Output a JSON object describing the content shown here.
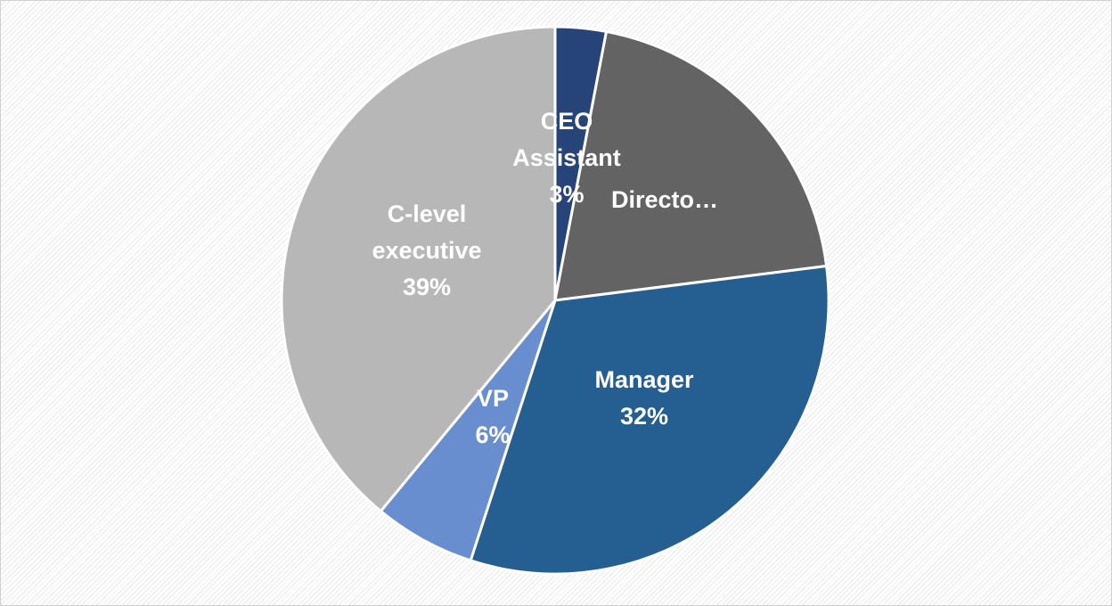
{
  "chart_data": {
    "type": "pie",
    "start_angle_deg": 0,
    "direction": "clockwise",
    "slices": [
      {
        "category": "CEO Assistant",
        "value": 3,
        "value_label": "3%",
        "label_lines": [
          "CEO",
          "Assistant",
          "3%"
        ],
        "color": "#264478"
      },
      {
        "category": "Directo…",
        "value": 20,
        "value_label": "",
        "label_lines": [
          "Directo…"
        ],
        "color": "#636363"
      },
      {
        "category": "Manager",
        "value": 32,
        "value_label": "32%",
        "label_lines": [
          "Manager",
          "32%"
        ],
        "color": "#255e91"
      },
      {
        "category": "VP",
        "value": 6,
        "value_label": "6%",
        "label_lines": [
          "VP",
          "6%"
        ],
        "color": "#698ed0"
      },
      {
        "category": "C-level executive",
        "value": 39,
        "value_label": "39%",
        "label_lines": [
          "C-level",
          "executive",
          "39%"
        ],
        "color": "#b7b7b7"
      }
    ],
    "title": "",
    "legend": "none",
    "label_color": "#ffffff",
    "background": "#f4f4f4"
  }
}
